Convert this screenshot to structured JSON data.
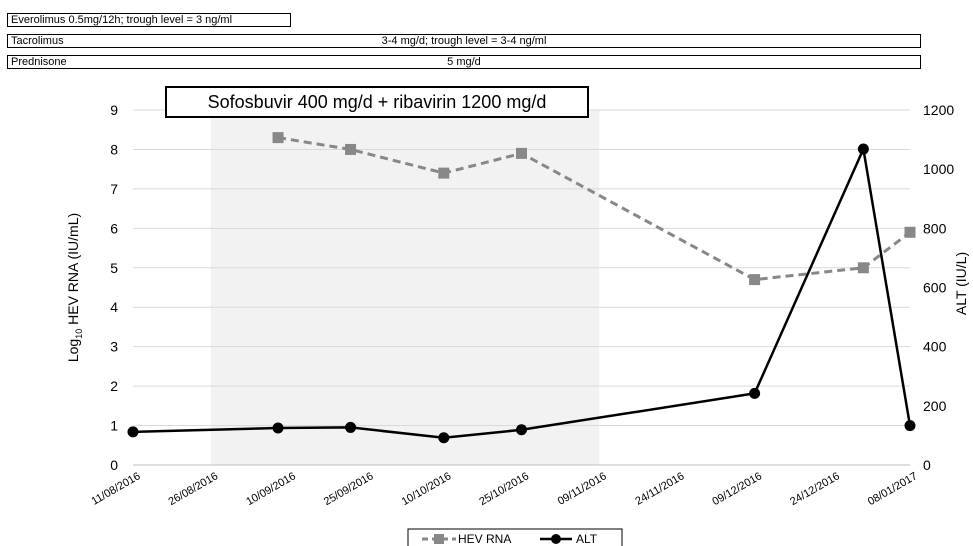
{
  "drug_bars": [
    {
      "name": "Everolimus 0.5mg/12h; trough level = 3 ng/ml",
      "dose": ""
    },
    {
      "name": "Tacrolimus",
      "dose": "3-4 mg/d; trough level = 3-4 ng/ml"
    },
    {
      "name": "Prednisone",
      "dose": "5 mg/d"
    }
  ],
  "colors": {
    "hev": "#888888",
    "alt": "#000000",
    "shade": "#f2f2f2",
    "grid": "#d9d9d9"
  },
  "chart_data": {
    "type": "line",
    "title": "",
    "annotation": "Sofosbuvir 400 mg/d + ribavirin 1200 mg/d",
    "treatment_period": {
      "start": "2016-08-26",
      "end": "2016-11-09"
    },
    "x_tick_labels": [
      "11/08/2016",
      "26/08/2016",
      "10/09/2016",
      "25/09/2016",
      "10/10/2016",
      "25/10/2016",
      "09/11/2016",
      "24/11/2016",
      "09/12/2016",
      "24/12/2016",
      "08/01/2017"
    ],
    "x_ticks": [
      "2016-08-11",
      "2016-08-26",
      "2016-09-10",
      "2016-09-25",
      "2016-10-10",
      "2016-10-25",
      "2016-11-09",
      "2016-11-24",
      "2016-12-09",
      "2016-12-24",
      "2017-01-08"
    ],
    "xlim": [
      "2016-08-11",
      "2017-01-08"
    ],
    "y_left": {
      "label_prefix": "Log",
      "label_sub": "10",
      "label_suffix": " HEV RNA (IU/mL)",
      "lim": [
        0,
        9
      ],
      "ticks": [
        0,
        1,
        2,
        3,
        4,
        5,
        6,
        7,
        8,
        9
      ]
    },
    "y_right": {
      "label": "ALT (IU/L)",
      "lim": [
        0,
        1200
      ],
      "ticks": [
        0,
        200,
        400,
        600,
        800,
        1000,
        1200
      ]
    },
    "grid": true,
    "legend_position": "bottom",
    "series": [
      {
        "name": "HEV RNA",
        "axis": "left",
        "style": "dashed",
        "marker": "square",
        "points": [
          {
            "x": "2016-09-08",
            "y": 8.3
          },
          {
            "x": "2016-09-22",
            "y": 8.0
          },
          {
            "x": "2016-10-10",
            "y": 7.4
          },
          {
            "x": "2016-10-25",
            "y": 7.9
          },
          {
            "x": "2016-12-09",
            "y": 4.7
          },
          {
            "x": "2016-12-30",
            "y": 5.0
          },
          {
            "x": "2017-01-08",
            "y": 5.9
          }
        ]
      },
      {
        "name": "ALT",
        "axis": "right",
        "style": "solid",
        "marker": "circle",
        "points": [
          {
            "x": "2016-08-11",
            "y": 112
          },
          {
            "x": "2016-09-08",
            "y": 125
          },
          {
            "x": "2016-09-22",
            "y": 127
          },
          {
            "x": "2016-10-10",
            "y": 92
          },
          {
            "x": "2016-10-25",
            "y": 119
          },
          {
            "x": "2016-12-09",
            "y": 242
          },
          {
            "x": "2016-12-30",
            "y": 1068
          },
          {
            "x": "2017-01-08",
            "y": 133
          }
        ]
      }
    ]
  }
}
